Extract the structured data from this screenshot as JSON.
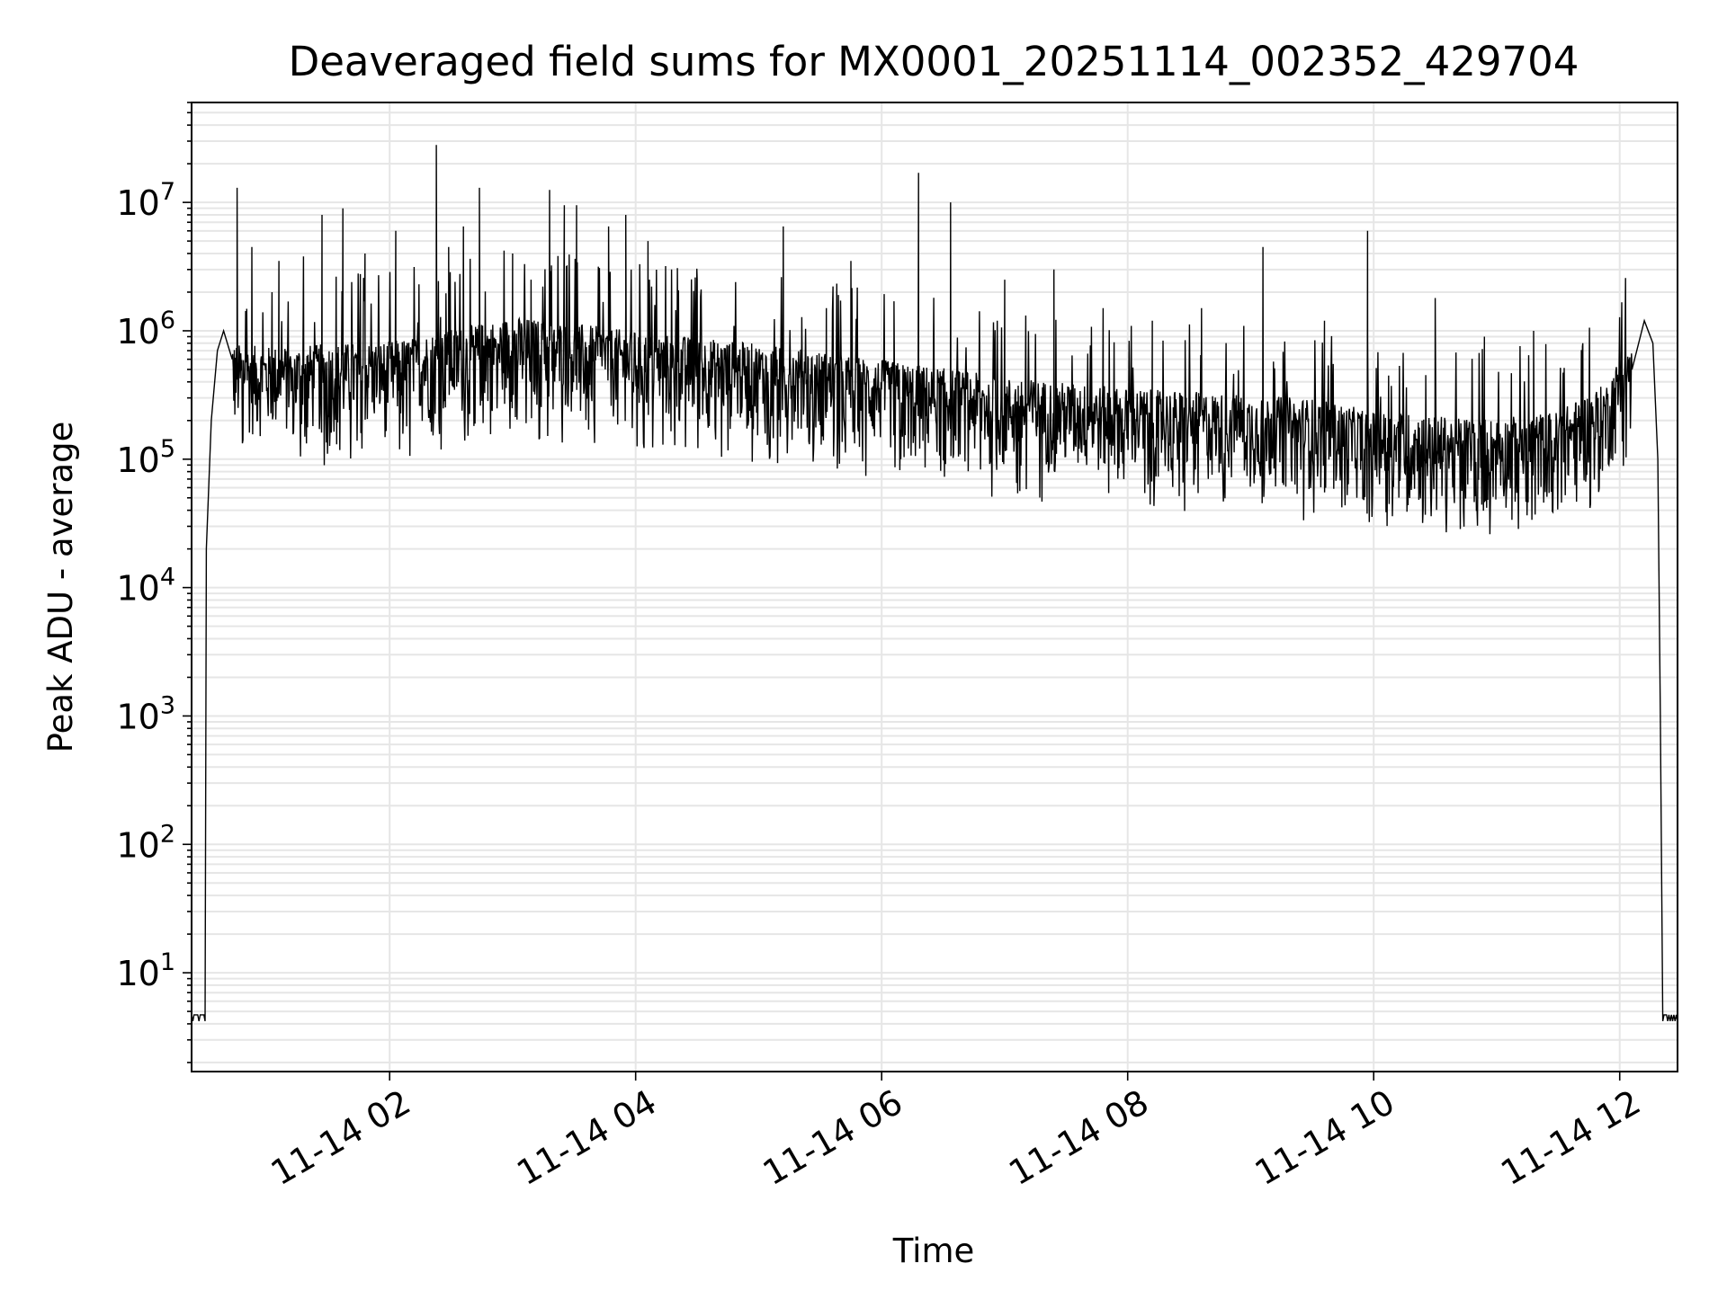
{
  "chart_data": {
    "type": "line",
    "title": "Deaveraged field sums for MX0001_20251114_002352_429704",
    "xlabel": "Time",
    "ylabel": "Peak ADU - average",
    "yscale": "log",
    "ylim": [
      1.7,
      60000000
    ],
    "xlim_hours": [
      0.39,
      12.47
    ],
    "grid": true,
    "legend": "none",
    "x_ticks": [
      {
        "hour": 2,
        "label": "11-14 02"
      },
      {
        "hour": 4,
        "label": "11-14 04"
      },
      {
        "hour": 6,
        "label": "11-14 06"
      },
      {
        "hour": 8,
        "label": "11-14 08"
      },
      {
        "hour": 10,
        "label": "11-14 10"
      },
      {
        "hour": 12,
        "label": "11-14 12"
      }
    ],
    "y_ticks": [
      {
        "exp": 1,
        "base": "10",
        "sup": "1"
      },
      {
        "exp": 2,
        "base": "10",
        "sup": "2"
      },
      {
        "exp": 3,
        "base": "10",
        "sup": "3"
      },
      {
        "exp": 4,
        "base": "10",
        "sup": "4"
      },
      {
        "exp": 5,
        "base": "10",
        "sup": "5"
      },
      {
        "exp": 6,
        "base": "10",
        "sup": "6"
      },
      {
        "exp": 7,
        "base": "10",
        "sup": "7"
      }
    ],
    "series": [
      {
        "name": "Deaveraged field sum",
        "color": "#000000",
        "floor_value": 4.2,
        "start_rise": [
          [
            0.5,
            4.2
          ],
          [
            0.51,
            20000
          ],
          [
            0.55,
            200000
          ],
          [
            0.6,
            700000
          ],
          [
            0.65,
            1000000
          ],
          [
            0.72,
            600000
          ]
        ],
        "end_fall": [
          [
            12.1,
            500000
          ],
          [
            12.2,
            1200000
          ],
          [
            12.27,
            800000
          ],
          [
            12.31,
            100000
          ],
          [
            12.33,
            1000
          ],
          [
            12.35,
            4.2
          ]
        ],
        "baseline": [
          [
            0.72,
            400000
          ],
          [
            1.0,
            380000
          ],
          [
            1.5,
            400000
          ],
          [
            2.0,
            420000
          ],
          [
            2.5,
            520000
          ],
          [
            3.0,
            650000
          ],
          [
            3.5,
            580000
          ],
          [
            4.0,
            500000
          ],
          [
            4.5,
            450000
          ],
          [
            5.0,
            400000
          ],
          [
            5.5,
            350000
          ],
          [
            6.0,
            300000
          ],
          [
            6.5,
            260000
          ],
          [
            7.0,
            220000
          ],
          [
            7.5,
            200000
          ],
          [
            8.0,
            180000
          ],
          [
            8.5,
            170000
          ],
          [
            9.0,
            160000
          ],
          [
            9.5,
            150000
          ],
          [
            10.0,
            120000
          ],
          [
            10.5,
            110000
          ],
          [
            11.0,
            105000
          ],
          [
            11.5,
            120000
          ],
          [
            11.9,
            200000
          ],
          [
            12.1,
            500000
          ]
        ],
        "spikes": [
          [
            0.76,
            13000000
          ],
          [
            0.88,
            4500000
          ],
          [
            1.1,
            3500000
          ],
          [
            1.3,
            3800000
          ],
          [
            1.45,
            8000000
          ],
          [
            1.62,
            9000000
          ],
          [
            1.8,
            4000000
          ],
          [
            2.05,
            6000000
          ],
          [
            2.38,
            28000000
          ],
          [
            2.48,
            4500000
          ],
          [
            2.6,
            6500000
          ],
          [
            2.73,
            13000000
          ],
          [
            3.0,
            4000000
          ],
          [
            3.15,
            2500000
          ],
          [
            3.3,
            12500000
          ],
          [
            3.42,
            9500000
          ],
          [
            3.52,
            9500000
          ],
          [
            3.78,
            6500000
          ],
          [
            3.92,
            8000000
          ],
          [
            4.1,
            5000000
          ],
          [
            4.5,
            2500000
          ],
          [
            5.2,
            6500000
          ],
          [
            5.55,
            1500000
          ],
          [
            5.75,
            3500000
          ],
          [
            6.1,
            1700000
          ],
          [
            6.3,
            17000000
          ],
          [
            6.56,
            10000000
          ],
          [
            7.0,
            2500000
          ],
          [
            7.4,
            3000000
          ],
          [
            7.8,
            1500000
          ],
          [
            8.2,
            1200000
          ],
          [
            8.6,
            1500000
          ],
          [
            9.1,
            4500000
          ],
          [
            9.6,
            1200000
          ],
          [
            9.95,
            6000000
          ],
          [
            10.5,
            1800000
          ],
          [
            10.9,
            900000
          ],
          [
            11.3,
            1000000
          ],
          [
            11.7,
            800000
          ],
          [
            12.17,
            3200000
          ]
        ]
      }
    ]
  }
}
